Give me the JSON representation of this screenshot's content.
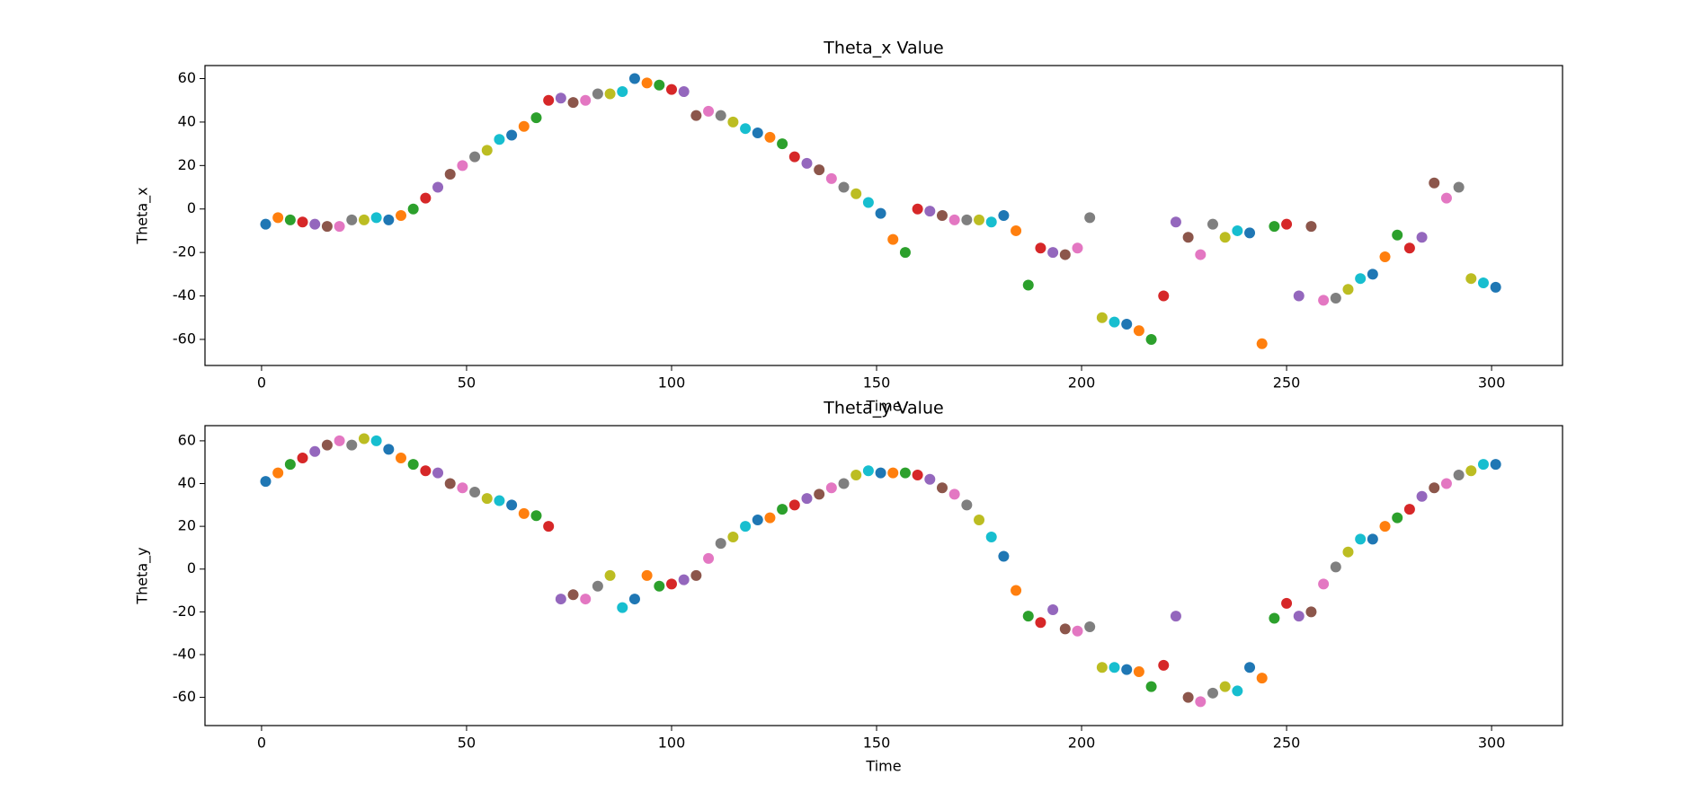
{
  "chart_data": [
    {
      "type": "scatter",
      "title": "Theta_x Value",
      "xlabel": "Time",
      "ylabel": "Theta_x",
      "colors": [
        "#1f77b4",
        "#ff7f0e",
        "#2ca02c",
        "#d62728",
        "#9467bd",
        "#8c564b",
        "#e377c2",
        "#7f7f7f",
        "#bcbd22",
        "#17becf"
      ],
      "xlim": [
        -13.8,
        317.3
      ],
      "ylim": [
        -72,
        66
      ],
      "xticks": [
        0,
        50,
        100,
        150,
        200,
        250,
        300
      ],
      "yticks": [
        -60,
        -40,
        -20,
        0,
        20,
        40,
        60
      ],
      "x": [
        1,
        4,
        7,
        10,
        13,
        16,
        19,
        22,
        25,
        28,
        31,
        34,
        37,
        40,
        43,
        46,
        49,
        52,
        55,
        58,
        61,
        64,
        67,
        70,
        73,
        76,
        79,
        82,
        85,
        88,
        91,
        94,
        97,
        100,
        103,
        106,
        109,
        112,
        115,
        118,
        121,
        124,
        127,
        130,
        133,
        136,
        139,
        142,
        145,
        148,
        151,
        154,
        157,
        160,
        163,
        166,
        169,
        172,
        175,
        178,
        181,
        184,
        187,
        190,
        193,
        196,
        199,
        202,
        205,
        208,
        211,
        214,
        217,
        220,
        223,
        226,
        229,
        232,
        235,
        238,
        241,
        244,
        247,
        250,
        253,
        256,
        259,
        262,
        265,
        268,
        271,
        274,
        277,
        280,
        283,
        286,
        289,
        292,
        295,
        298,
        301
      ],
      "values": [
        -7,
        -4,
        -5,
        -6,
        -7,
        -8,
        -8,
        -5,
        -5,
        -4,
        -5,
        -3,
        0,
        5,
        10,
        16,
        20,
        24,
        27,
        32,
        34,
        38,
        42,
        50,
        51,
        49,
        50,
        53,
        53,
        54,
        60,
        58,
        57,
        55,
        54,
        43,
        45,
        43,
        40,
        37,
        35,
        33,
        30,
        24,
        21,
        18,
        14,
        10,
        7,
        3,
        -2,
        -14,
        -20,
        0,
        -1,
        -3,
        -5,
        -5,
        -5,
        -6,
        -3,
        -10,
        -35,
        -18,
        -20,
        -21,
        -18,
        -4,
        -50,
        -52,
        -53,
        -56,
        -60,
        -40,
        -6,
        -13,
        -21,
        -7,
        -13,
        -10,
        -11,
        -62,
        -8,
        -7,
        -40,
        -8,
        -42,
        -41,
        -37,
        -32,
        -30,
        -22,
        -12,
        -18,
        -13,
        12,
        5,
        10,
        -32,
        -34,
        -36
      ]
    },
    {
      "type": "scatter",
      "title": "Theta_y Value",
      "xlabel": "Time",
      "ylabel": "Theta_y",
      "colors": [
        "#1f77b4",
        "#ff7f0e",
        "#2ca02c",
        "#d62728",
        "#9467bd",
        "#8c564b",
        "#e377c2",
        "#7f7f7f",
        "#bcbd22",
        "#17becf"
      ],
      "xlim": [
        -13.8,
        317.3
      ],
      "ylim": [
        -73.2,
        67.1
      ],
      "xticks": [
        0,
        50,
        100,
        150,
        200,
        250,
        300
      ],
      "yticks": [
        -60,
        -40,
        -20,
        0,
        20,
        40,
        60
      ],
      "x": [
        1,
        4,
        7,
        10,
        13,
        16,
        19,
        22,
        25,
        28,
        31,
        34,
        37,
        40,
        43,
        46,
        49,
        52,
        55,
        58,
        61,
        64,
        67,
        70,
        73,
        76,
        79,
        82,
        85,
        88,
        91,
        94,
        97,
        100,
        103,
        106,
        109,
        112,
        115,
        118,
        121,
        124,
        127,
        130,
        133,
        136,
        139,
        142,
        145,
        148,
        151,
        154,
        157,
        160,
        163,
        166,
        169,
        172,
        175,
        178,
        181,
        184,
        187,
        190,
        193,
        196,
        199,
        202,
        205,
        208,
        211,
        214,
        217,
        220,
        223,
        226,
        229,
        232,
        235,
        238,
        241,
        244,
        247,
        250,
        253,
        256,
        259,
        262,
        265,
        268,
        271,
        274,
        277,
        280,
        283,
        286,
        289,
        292,
        295,
        298,
        301
      ],
      "values": [
        41,
        45,
        49,
        52,
        55,
        58,
        60,
        58,
        61,
        60,
        56,
        52,
        49,
        46,
        45,
        40,
        38,
        36,
        33,
        32,
        30,
        26,
        25,
        20,
        -14,
        -12,
        -14,
        -8,
        -3,
        -18,
        -14,
        -3,
        -8,
        -7,
        -5,
        -3,
        5,
        12,
        15,
        20,
        23,
        24,
        28,
        30,
        33,
        35,
        38,
        40,
        44,
        46,
        45,
        45,
        45,
        44,
        42,
        38,
        35,
        30,
        23,
        15,
        6,
        -10,
        -22,
        -25,
        -19,
        -28,
        -29,
        -27,
        -46,
        -46,
        -47,
        -48,
        -55,
        -45,
        -22,
        -60,
        -62,
        -58,
        -55,
        -57,
        -46,
        -51,
        -23,
        -16,
        -22,
        -20,
        -7,
        1,
        8,
        14,
        14,
        20,
        24,
        28,
        34,
        38,
        40,
        44,
        46,
        49,
        49
      ]
    }
  ]
}
